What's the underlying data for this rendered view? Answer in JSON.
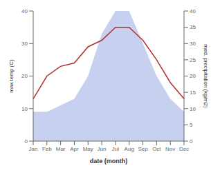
{
  "chart_data": {
    "type": "line",
    "categories": [
      "Jan",
      "Feb",
      "Mar",
      "Apr",
      "May",
      "Jun",
      "Jul",
      "Aug",
      "Sep",
      "Oct",
      "Nov",
      "Dec"
    ],
    "series": [
      {
        "type": "area",
        "color": "#b0bce8",
        "axis": "y2",
        "values": [
          9,
          9,
          11,
          13,
          20,
          33,
          40,
          40,
          30,
          20,
          13,
          9
        ]
      },
      {
        "type": "line",
        "color": "#b03030",
        "values": [
          13,
          20,
          23,
          24,
          29,
          31,
          35,
          35,
          31,
          25,
          18,
          13
        ]
      }
    ],
    "xlabel": "date (month)",
    "ylabel": "max temp (C)",
    "y2label": "med. precipitation (kg/m2)",
    "ylim": [
      0,
      40
    ],
    "yticks": [
      0,
      10,
      20,
      30,
      40
    ],
    "y2lim": [
      0,
      40
    ],
    "y2ticks": [
      0,
      5,
      10,
      15,
      20,
      25,
      30,
      35,
      40
    ],
    "grid": false
  }
}
